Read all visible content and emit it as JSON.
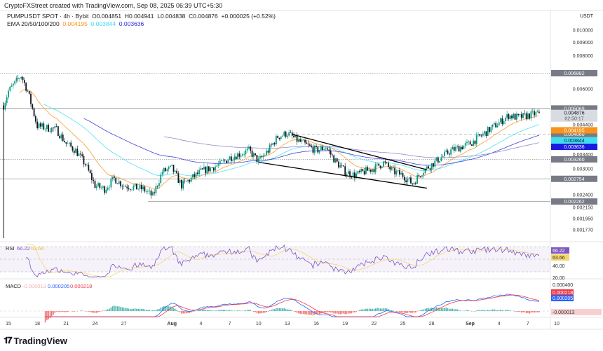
{
  "header": {
    "created_by": "CryptoFXStreet created with TradingView.com, Sep 08, 2025 06:39 UTC+5:30",
    "symbol": "PUMPUSDT SPOT · 4h · Bybit",
    "open": "O0.004851",
    "high": "H0.004941",
    "low": "L0.004838",
    "close": "C0.004876",
    "change": "+0.000025 (+0.52%)",
    "ema_label": "EMA 20/50/100/200",
    "ema_values": [
      "0.004195",
      "0.003844",
      "0.003636"
    ]
  },
  "footer": {
    "brand": "TradingView"
  },
  "colors": {
    "up": "#089981",
    "down": "#131722",
    "ema20": "#f7931a",
    "ema50": "#3de0f0",
    "ema100": "#2b2bd6",
    "ema200": "#8a7fc4",
    "rsi": "#7e57c2",
    "rsi_ma": "#f5d76e",
    "macd": "#2962ff",
    "signal": "#f23645",
    "hist_up": "#26a69a",
    "hist_down": "#ef5350"
  },
  "chart_data": [
    {
      "type": "candlestick",
      "title": "PUMPUSDT SPOT · 4h · Bybit",
      "ylabel": "USDT",
      "y_scale": "log",
      "ylim": [
        0.00172,
        0.0105
      ],
      "y_ticks": [
        "0.010000",
        "0.009000",
        "0.008000",
        "0.006000",
        "0.004400",
        "0.003400",
        "0.003000",
        "0.002400",
        "0.002150",
        "0.001950",
        "0.001770"
      ],
      "x_ticks": [
        "15",
        "18",
        "21",
        "24",
        "27",
        "Aug",
        "4",
        "7",
        "10",
        "13",
        "16",
        "19",
        "22",
        "25",
        "28",
        "Sep",
        "4",
        "7",
        "10"
      ],
      "price_path": [
        [
          "2025-07-14 12:00",
          0.0052
        ],
        [
          "2025-07-15 00:00",
          0.00589
        ],
        [
          "2025-07-16 08:00",
          0.00674
        ],
        [
          "2025-07-17 00:00",
          0.00589
        ],
        [
          "2025-07-18 00:00",
          0.00435
        ],
        [
          "2025-07-20 00:00",
          0.00422
        ],
        [
          "2025-07-21 00:00",
          0.00374
        ],
        [
          "2025-07-22 00:00",
          0.00352
        ],
        [
          "2025-07-23 00:00",
          0.00312
        ],
        [
          "2025-07-24 00:00",
          0.0026
        ],
        [
          "2025-07-25 00:00",
          0.00252
        ],
        [
          "2025-07-26 00:00",
          0.00276
        ],
        [
          "2025-07-27 00:00",
          0.0026
        ],
        [
          "2025-07-29 00:00",
          0.00252
        ],
        [
          "2025-07-30 00:00",
          0.00237
        ],
        [
          "2025-07-31 00:00",
          0.00293
        ],
        [
          "2025-08-01 00:00",
          0.00302
        ],
        [
          "2025-08-02 00:00",
          0.0026
        ],
        [
          "2025-08-03 00:00",
          0.00276
        ],
        [
          "2025-08-04 00:00",
          0.00293
        ],
        [
          "2025-08-06 00:00",
          0.00312
        ],
        [
          "2025-08-07 00:00",
          0.00331
        ],
        [
          "2025-08-09 00:00",
          0.00352
        ],
        [
          "2025-08-10 00:00",
          0.00321
        ],
        [
          "2025-08-11 00:00",
          0.00352
        ],
        [
          "2025-08-12 00:00",
          0.00397
        ],
        [
          "2025-08-13 00:00",
          0.00409
        ],
        [
          "2025-08-14 00:00",
          0.00385
        ],
        [
          "2025-08-16 00:00",
          0.00352
        ],
        [
          "2025-08-17 00:00",
          0.00362
        ],
        [
          "2025-08-18 00:00",
          0.00321
        ],
        [
          "2025-08-19 00:00",
          0.00293
        ],
        [
          "2025-08-20 00:00",
          0.00284
        ],
        [
          "2025-08-21 00:00",
          0.00293
        ],
        [
          "2025-08-22 00:00",
          0.00302
        ],
        [
          "2025-08-23 00:00",
          0.00317
        ],
        [
          "2025-08-24 00:00",
          0.00293
        ],
        [
          "2025-08-25 00:00",
          0.00284
        ],
        [
          "2025-08-26 00:00",
          0.00264
        ],
        [
          "2025-08-27 00:00",
          0.00293
        ],
        [
          "2025-08-28 00:00",
          0.00312
        ],
        [
          "2025-08-30 00:00",
          0.00352
        ],
        [
          "2025-09-01 00:00",
          0.00374
        ],
        [
          "2025-09-02 00:00",
          0.00397
        ],
        [
          "2025-09-03 00:00",
          0.00422
        ],
        [
          "2025-09-04 00:00",
          0.00448
        ],
        [
          "2025-09-05 00:00",
          0.00477
        ],
        [
          "2025-09-06 00:00",
          0.00468
        ],
        [
          "2025-09-07 00:00",
          0.00477
        ],
        [
          "2025-09-08 04:00",
          0.004876
        ]
      ],
      "levels": [
        {
          "price": 0.006882,
          "label": "0.006882",
          "style": "dotted"
        },
        {
          "price": 0.005069,
          "label": "0.005069",
          "style": "solid"
        },
        {
          "price": 0.00406,
          "label": "0.004060",
          "style": "dashed"
        },
        {
          "price": 0.00326,
          "label": "0.003260",
          "style": "dotted"
        },
        {
          "price": 0.002754,
          "label": "0.002754",
          "style": "solid"
        },
        {
          "price": 0.002262,
          "label": "0.002262",
          "style": "solid"
        }
      ],
      "trendlines": [
        [
          [
            "2025-08-13 12:00",
            0.00405
          ],
          [
            "2025-08-27 12:00",
            0.00298
          ]
        ],
        [
          [
            "2025-08-10 00:00",
            0.00318
          ],
          [
            "2025-08-27 12:00",
            0.00254
          ]
        ]
      ],
      "price_labels": [
        {
          "label": "0.004876",
          "sub": "02:50:17",
          "price": 0.004876,
          "bg": "#d9dbe3",
          "fg": "#131722"
        },
        {
          "label": "0.004195",
          "price": 0.004195,
          "bg": "#f7931a",
          "fg": "#fff"
        },
        {
          "label": "0.003844",
          "price": 0.003844,
          "bg": "#3de0f0",
          "fg": "#131722"
        },
        {
          "label": "0.003636",
          "price": 0.003636,
          "bg": "#1a1ae0",
          "fg": "#fff"
        }
      ]
    },
    {
      "type": "line",
      "title": "RSI",
      "values_shown": [
        "66.22",
        "63.66"
      ],
      "ylim": [
        20,
        75
      ],
      "y_ticks": [
        "40.00",
        "20.00"
      ],
      "band": [
        30,
        70
      ]
    },
    {
      "type": "bar",
      "title": "MACD",
      "values_shown": [
        "-0.000013",
        "0.000205",
        "0.000218"
      ],
      "y_ticks": [
        "0.000400"
      ],
      "hist_last": "-0.000013"
    }
  ]
}
